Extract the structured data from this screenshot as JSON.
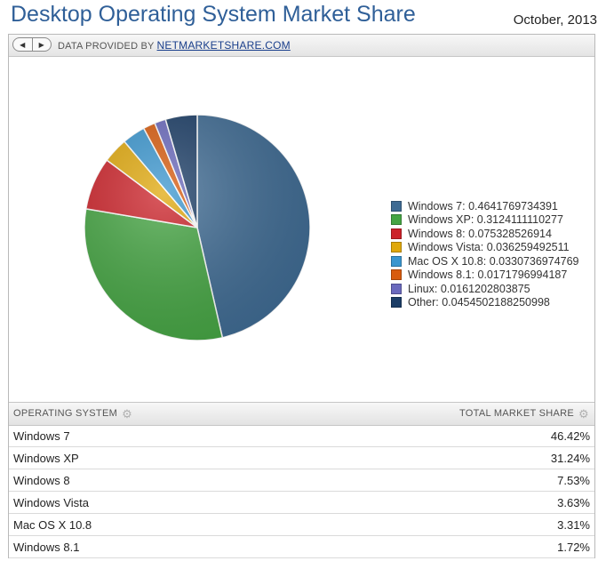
{
  "header": {
    "title": "Desktop Operating System Market Share",
    "date": "October, 2013"
  },
  "toolbar": {
    "prev_icon": "◀",
    "next_icon": "▶",
    "provided_by": "DATA PROVIDED BY",
    "provider_link": "NETMARKETSHARE.COM"
  },
  "chart_data": {
    "type": "pie",
    "title": "",
    "legend_placement": "right",
    "series": [
      {
        "name": "Windows 7",
        "value": 0.4641769734391,
        "color": "#3f6b93"
      },
      {
        "name": "Windows XP",
        "value": 0.3124111110277,
        "color": "#45a543"
      },
      {
        "name": "Windows 8",
        "value": 0.075328526914,
        "color": "#cc2229"
      },
      {
        "name": "Windows Vista",
        "value": 0.036259492511,
        "color": "#e0a80b"
      },
      {
        "name": "Mac OS X 10.8",
        "value": 0.0330736974769,
        "color": "#3a96cf"
      },
      {
        "name": "Windows 8.1",
        "value": 0.0171796994187,
        "color": "#d85b0d"
      },
      {
        "name": "Linux",
        "value": 0.0161202803875,
        "color": "#6a69bd"
      },
      {
        "name": "Other",
        "value": 0.0454502188250998,
        "color": "#1b3d66"
      }
    ]
  },
  "legend": {
    "items": [
      "Windows 7: 0.4641769734391",
      "Windows XP: 0.3124111110277",
      "Windows 8: 0.075328526914",
      "Windows Vista: 0.036259492511",
      "Mac OS X 10.8: 0.0330736974769",
      "Windows 8.1: 0.0171796994187",
      "Linux: 0.0161202803875",
      "Other: 0.0454502188250998"
    ]
  },
  "table": {
    "col_os": "OPERATING SYSTEM",
    "col_share": "TOTAL MARKET SHARE",
    "gear_icon": "⚙",
    "rows": [
      {
        "os": "Windows 7",
        "share": "46.42%"
      },
      {
        "os": "Windows XP",
        "share": "31.24%"
      },
      {
        "os": "Windows 8",
        "share": "7.53%"
      },
      {
        "os": "Windows Vista",
        "share": "3.63%"
      },
      {
        "os": "Mac OS X 10.8",
        "share": "3.31%"
      },
      {
        "os": "Windows 8.1",
        "share": "1.72%"
      }
    ]
  }
}
